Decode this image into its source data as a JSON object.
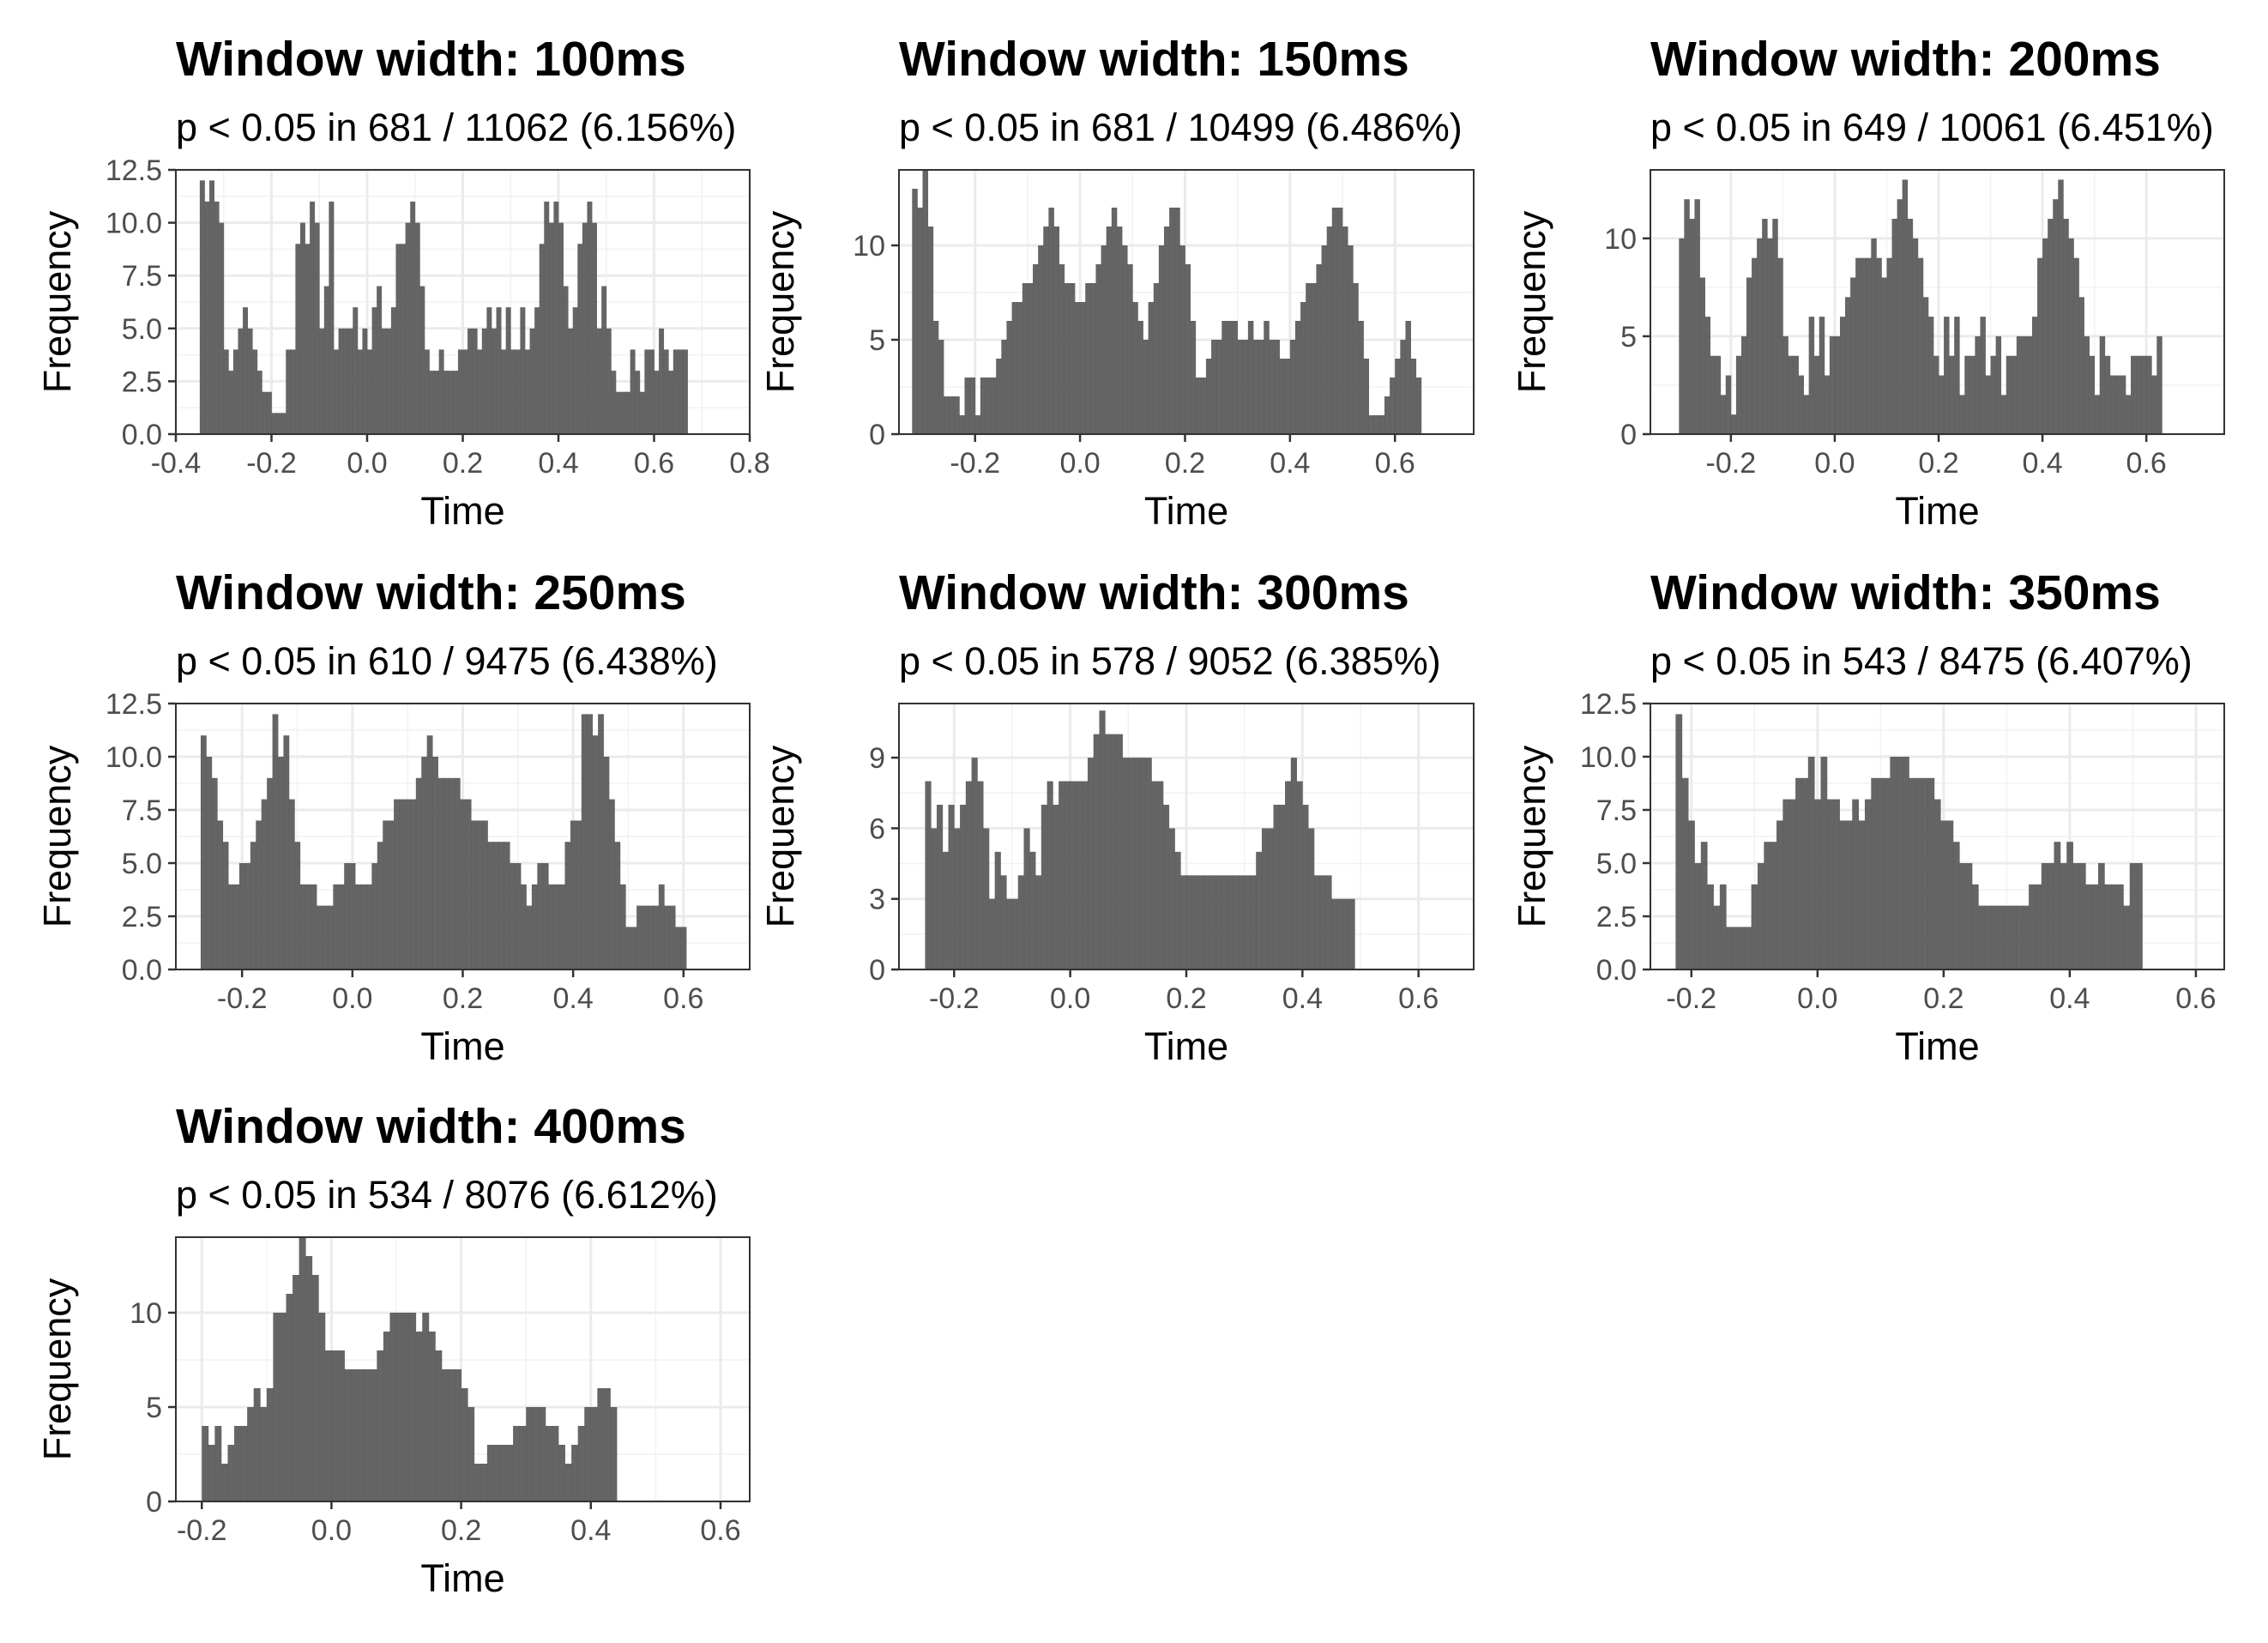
{
  "chart_data": [
    {
      "type": "bar",
      "title": "Window width: 100ms",
      "subtitle": "p < 0.05 in 681 / 11062 (6.156%)",
      "xlabel": "Time",
      "ylabel": "Frequency",
      "xlim": [
        -0.4,
        0.8
      ],
      "ylim": [
        0,
        12.5
      ],
      "xticks": [
        -0.4,
        -0.2,
        0.0,
        0.2,
        0.4,
        0.6,
        0.8
      ],
      "xtick_labels": [
        "-0.4",
        "-0.2",
        "0.0",
        "0.2",
        "0.4",
        "0.6",
        "0.8"
      ],
      "yticks": [
        0,
        2.5,
        5,
        7.5,
        10,
        12.5
      ],
      "ytick_labels": [
        "0.0",
        "2.5",
        "5.0",
        "7.5",
        "10.0",
        "12.5"
      ],
      "x_start": -0.35,
      "bin_width": 0.01,
      "values": [
        12,
        11,
        12,
        11,
        10,
        4,
        3,
        4,
        5,
        6,
        5,
        4,
        3,
        2,
        2,
        1,
        1,
        1,
        4,
        4,
        9,
        10,
        9,
        11,
        10,
        5,
        7,
        11,
        4,
        5,
        5,
        5,
        6,
        4,
        5,
        4,
        6,
        7,
        5,
        5,
        6,
        9,
        9,
        10,
        11,
        10,
        7,
        4,
        3,
        3,
        4,
        3,
        3,
        3,
        4,
        4,
        5,
        5,
        4,
        5,
        6,
        5,
        6,
        4,
        6,
        4,
        4,
        6,
        4,
        5,
        6,
        9,
        11,
        10,
        11,
        10,
        7,
        5,
        6,
        9,
        10,
        11,
        10,
        5,
        7,
        5,
        3,
        2,
        2,
        2,
        4,
        3,
        2,
        4,
        4,
        3,
        5,
        4,
        3,
        4,
        4,
        4
      ]
    },
    {
      "type": "bar",
      "title": "Window width: 150ms",
      "subtitle": "p < 0.05 in 681 / 10499 (6.486%)",
      "xlabel": "Time",
      "ylabel": "Frequency",
      "xlim": [
        -0.345,
        0.75
      ],
      "ylim": [
        0,
        14
      ],
      "xticks": [
        -0.2,
        0.0,
        0.2,
        0.4,
        0.6
      ],
      "xtick_labels": [
        "-0.2",
        "0.0",
        "0.2",
        "0.4",
        "0.6"
      ],
      "yticks": [
        0,
        5,
        10
      ],
      "ytick_labels": [
        "0",
        "5",
        "10"
      ],
      "x_start": -0.32,
      "bin_width": 0.01,
      "values": [
        13,
        12,
        14,
        11,
        6,
        5,
        2,
        2,
        2,
        1,
        3,
        3,
        1,
        3,
        3,
        3,
        4,
        5,
        6,
        7,
        7,
        8,
        8,
        9,
        10,
        11,
        12,
        11,
        9,
        8,
        8,
        7,
        7,
        8,
        8,
        9,
        10,
        11,
        12,
        11,
        10,
        9,
        7,
        6,
        5,
        7,
        8,
        10,
        11,
        12,
        12,
        10,
        9,
        6,
        3,
        3,
        4,
        5,
        5,
        6,
        6,
        6,
        5,
        5,
        6,
        5,
        5,
        6,
        5,
        5,
        4,
        4,
        5,
        6,
        7,
        8,
        8,
        9,
        10,
        11,
        12,
        12,
        11,
        10,
        8,
        6,
        4,
        1,
        1,
        1,
        2,
        3,
        4,
        5,
        6,
        4,
        3
      ]
    },
    {
      "type": "bar",
      "title": "Window width: 200ms",
      "subtitle": "p < 0.05 in 649 / 10061 (6.451%)",
      "xlabel": "Time",
      "ylabel": "Frequency",
      "xlim": [
        -0.355,
        0.75
      ],
      "ylim": [
        0,
        13.5
      ],
      "xticks": [
        -0.2,
        0.0,
        0.2,
        0.4,
        0.6
      ],
      "xtick_labels": [
        "-0.2",
        "0.0",
        "0.2",
        "0.4",
        "0.6"
      ],
      "yticks": [
        0,
        5,
        10
      ],
      "ytick_labels": [
        "0",
        "5",
        "10"
      ],
      "x_start": -0.3,
      "bin_width": 0.01,
      "values": [
        10,
        12,
        11,
        12,
        8,
        6,
        4,
        4,
        2,
        3,
        1,
        4,
        5,
        8,
        9,
        10,
        11,
        10,
        11,
        9,
        5,
        4,
        4,
        3,
        2,
        6,
        4,
        6,
        3,
        5,
        5,
        6,
        7,
        8,
        9,
        9,
        9,
        10,
        9,
        8,
        9,
        11,
        12,
        13,
        11,
        10,
        9,
        7,
        6,
        4,
        3,
        6,
        4,
        6,
        2,
        4,
        4,
        5,
        6,
        3,
        4,
        5,
        2,
        4,
        4,
        5,
        5,
        5,
        6,
        9,
        10,
        11,
        12,
        13,
        11,
        10,
        9,
        7,
        5,
        4,
        2,
        5,
        4,
        3,
        3,
        3,
        2,
        4,
        4,
        4,
        4,
        3,
        5
      ]
    },
    {
      "type": "bar",
      "title": "Window width: 250ms",
      "subtitle": "p < 0.05 in 610 / 9475 (6.438%)",
      "xlabel": "Time",
      "ylabel": "Frequency",
      "xlim": [
        -0.32,
        0.72
      ],
      "ylim": [
        0,
        12.5
      ],
      "xticks": [
        -0.2,
        0.0,
        0.2,
        0.4,
        0.6
      ],
      "xtick_labels": [
        "-0.2",
        "0.0",
        "0.2",
        "0.4",
        "0.6"
      ],
      "yticks": [
        0,
        2.5,
        5,
        7.5,
        10,
        12.5
      ],
      "ytick_labels": [
        "0.0",
        "2.5",
        "5.0",
        "7.5",
        "10.0",
        "12.5"
      ],
      "x_start": -0.275,
      "bin_width": 0.01,
      "values": [
        11,
        10,
        9,
        7,
        6,
        4,
        4,
        5,
        5,
        6,
        7,
        8,
        9,
        12,
        10,
        11,
        8,
        6,
        4,
        4,
        4,
        3,
        3,
        3,
        4,
        4,
        5,
        5,
        4,
        4,
        4,
        5,
        6,
        7,
        7,
        8,
        8,
        8,
        8,
        9,
        10,
        11,
        10,
        9,
        9,
        9,
        9,
        8,
        8,
        7,
        7,
        7,
        6,
        6,
        6,
        6,
        5,
        5,
        4,
        3,
        4,
        5,
        5,
        4,
        4,
        4,
        6,
        7,
        7,
        12,
        12,
        11,
        12,
        10,
        8,
        6,
        4,
        2,
        2,
        3,
        3,
        3,
        3,
        4,
        3,
        3,
        2,
        2
      ]
    },
    {
      "type": "bar",
      "title": "Window width: 300ms",
      "subtitle": "p < 0.05 in 578 / 9052 (6.385%)",
      "xlabel": "Time",
      "ylabel": "Frequency",
      "xlim": [
        -0.295,
        0.695
      ],
      "ylim": [
        0,
        11.3
      ],
      "xticks": [
        -0.2,
        0.0,
        0.2,
        0.4,
        0.6
      ],
      "xtick_labels": [
        "-0.2",
        "0.0",
        "0.2",
        "0.4",
        "0.6"
      ],
      "yticks": [
        0,
        3,
        6,
        9
      ],
      "ytick_labels": [
        "0",
        "3",
        "6",
        "9"
      ],
      "x_start": -0.25,
      "bin_width": 0.01,
      "values": [
        8,
        6,
        7,
        5,
        7,
        6,
        7,
        8,
        9,
        8,
        6,
        3,
        5,
        4,
        3,
        3,
        4,
        6,
        5,
        4,
        7,
        8,
        7,
        8,
        8,
        8,
        8,
        8,
        9,
        10,
        11,
        10,
        10,
        10,
        9,
        9,
        9,
        9,
        9,
        8,
        8,
        7,
        6,
        5,
        4,
        4,
        4,
        4,
        4,
        4,
        4,
        4,
        4,
        4,
        4,
        4,
        4,
        5,
        6,
        6,
        7,
        7,
        8,
        9,
        8,
        7,
        6,
        4,
        4,
        4,
        3,
        3,
        3,
        3
      ]
    },
    {
      "type": "bar",
      "title": "Window width: 350ms",
      "subtitle": "p < 0.05 in 543 / 8475 (6.407%)",
      "xlabel": "Time",
      "ylabel": "Frequency",
      "xlim": [
        -0.265,
        0.645
      ],
      "ylim": [
        0,
        12.5
      ],
      "xticks": [
        -0.2,
        0.0,
        0.2,
        0.4,
        0.6
      ],
      "xtick_labels": [
        "-0.2",
        "0.0",
        "0.2",
        "0.4",
        "0.6"
      ],
      "yticks": [
        0,
        2.5,
        5,
        7.5,
        10,
        12.5
      ],
      "ytick_labels": [
        "0.0",
        "2.5",
        "5.0",
        "7.5",
        "10.0",
        "12.5"
      ],
      "x_start": -0.225,
      "bin_width": 0.01,
      "values": [
        12,
        9,
        7,
        5,
        6,
        4,
        3,
        4,
        2,
        2,
        2,
        2,
        4,
        5,
        6,
        6,
        7,
        8,
        8,
        9,
        9,
        10,
        8,
        10,
        8,
        8,
        7,
        7,
        8,
        7,
        8,
        9,
        9,
        9,
        10,
        10,
        10,
        9,
        9,
        9,
        9,
        8,
        7,
        7,
        6,
        5,
        5,
        4,
        3,
        3,
        3,
        3,
        3,
        3,
        3,
        3,
        4,
        4,
        5,
        5,
        6,
        5,
        6,
        5,
        5,
        4,
        4,
        5,
        4,
        4,
        4,
        3,
        5,
        5
      ]
    },
    {
      "type": "bar",
      "title": "Window width: 400ms",
      "subtitle": "p < 0.05 in 534 / 8076 (6.612%)",
      "xlabel": "Time",
      "ylabel": "Frequency",
      "xlim": [
        -0.24,
        0.645
      ],
      "ylim": [
        0,
        14
      ],
      "xticks": [
        -0.2,
        0.0,
        0.2,
        0.4,
        0.6
      ],
      "xtick_labels": [
        "-0.2",
        "0.0",
        "0.2",
        "0.4",
        "0.6"
      ],
      "yticks": [
        0,
        5,
        10
      ],
      "ytick_labels": [
        "0",
        "5",
        "10"
      ],
      "x_start": -0.2,
      "bin_width": 0.01,
      "values": [
        4,
        3,
        4,
        2,
        3,
        4,
        4,
        5,
        6,
        5,
        6,
        10,
        10,
        11,
        12,
        14,
        13,
        12,
        10,
        8,
        8,
        8,
        7,
        7,
        7,
        7,
        7,
        8,
        9,
        10,
        10,
        10,
        10,
        9,
        10,
        9,
        8,
        7,
        7,
        7,
        6,
        5,
        2,
        2,
        3,
        3,
        3,
        3,
        4,
        4,
        5,
        5,
        5,
        4,
        4,
        3,
        2,
        3,
        4,
        5,
        5,
        6,
        6,
        5
      ]
    }
  ]
}
